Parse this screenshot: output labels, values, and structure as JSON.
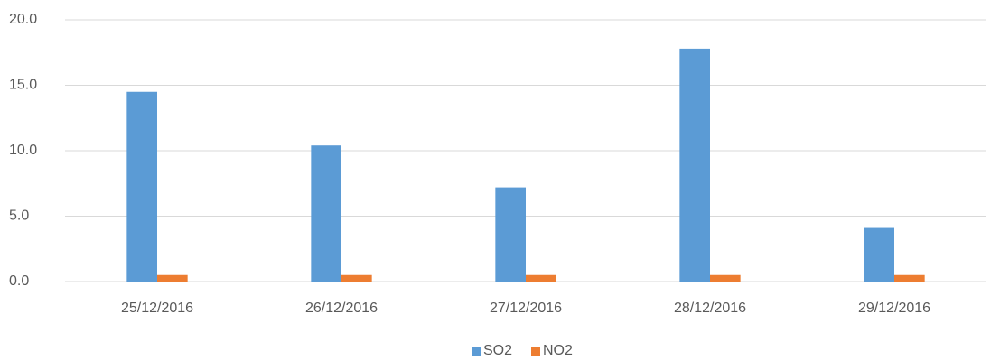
{
  "chart_data": {
    "type": "bar",
    "categories": [
      "25/12/2016",
      "26/12/2016",
      "27/12/2016",
      "28/12/2016",
      "29/12/2016"
    ],
    "series": [
      {
        "name": "SO2",
        "color": "#5b9bd5",
        "values": [
          14.5,
          10.4,
          7.2,
          17.8,
          4.1
        ]
      },
      {
        "name": "NO2",
        "color": "#ed7d31",
        "values": [
          0.5,
          0.5,
          0.5,
          0.5,
          0.5
        ]
      }
    ],
    "ylim": [
      0,
      20
    ],
    "yticks": [
      {
        "value": 0,
        "label": "0.0"
      },
      {
        "value": 5,
        "label": "5.0"
      },
      {
        "value": 10,
        "label": "10.0"
      },
      {
        "value": 15,
        "label": "15.0"
      },
      {
        "value": 20,
        "label": "20.0"
      }
    ],
    "grid": true,
    "legend": "bottom"
  }
}
